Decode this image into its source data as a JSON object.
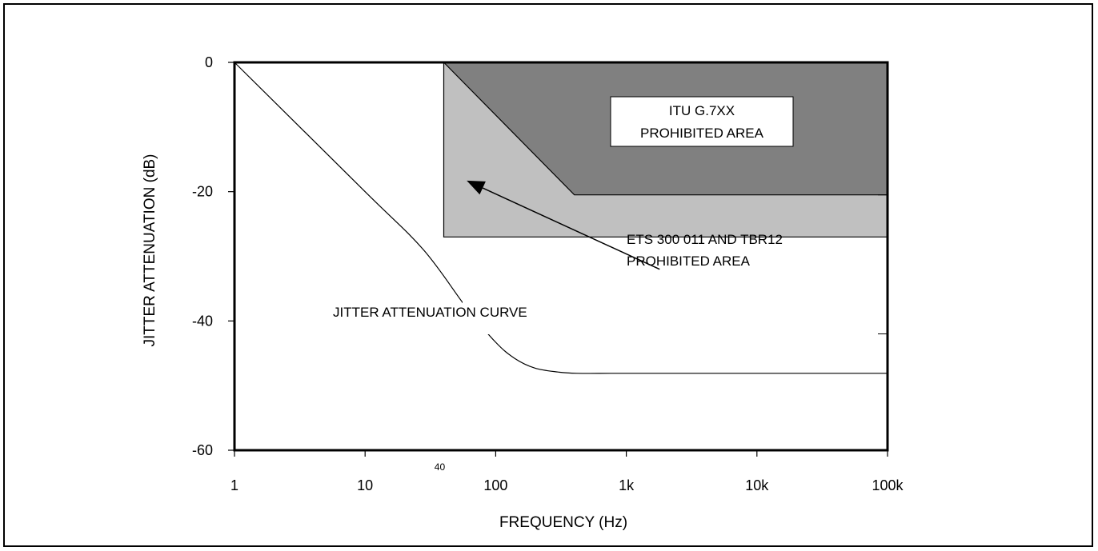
{
  "chart_data": {
    "type": "line",
    "xlabel": "FREQUENCY (Hz)",
    "ylabel": "JITTER ATTENUATION (dB)",
    "x_scale": "log",
    "xlim": [
      1,
      100000
    ],
    "ylim": [
      -60,
      0
    ],
    "x_ticks": [
      {
        "value": 1,
        "label": "1"
      },
      {
        "value": 10,
        "label": "10"
      },
      {
        "value": 100,
        "label": "100"
      },
      {
        "value": 1000,
        "label": "1k"
      },
      {
        "value": 10000,
        "label": "10k"
      },
      {
        "value": 100000,
        "label": "100k"
      }
    ],
    "y_ticks": [
      {
        "value": 0,
        "label": "0"
      },
      {
        "value": -20,
        "label": "-20"
      },
      {
        "value": -40,
        "label": "-40"
      },
      {
        "value": -60,
        "label": "-60"
      }
    ],
    "extra_x_tick": {
      "value": 40,
      "label": "40"
    },
    "right_minor_ticks": [
      -20.5,
      -42
    ],
    "grid": false,
    "curve": {
      "name": "JITTER ATTENUATION CURVE",
      "x": [
        1,
        10,
        28,
        60,
        100,
        140,
        200,
        300,
        420,
        1000,
        10000,
        100000
      ],
      "y": [
        0,
        -20,
        -29,
        -38,
        -43.3,
        -45.8,
        -47.3,
        -47.9,
        -48.1,
        -48.1,
        -48.1,
        -48.1
      ]
    },
    "regions": [
      {
        "name": "ETS 300 011 AND TBR12\nPROHIBITED AREA",
        "label_lines": [
          "ETS 300 011 AND TBR12",
          "PROHIBITED AREA"
        ],
        "color": "#c0c0c0",
        "x": [
          40,
          100000,
          100000,
          40
        ],
        "y": [
          0,
          0,
          -27,
          -27
        ]
      },
      {
        "name": "ITU G.7XX\nPROHIBITED AREA",
        "label_lines": [
          "ITU G.7XX",
          "PROHIBITED AREA"
        ],
        "color": "#808080",
        "x": [
          40,
          100000,
          100000,
          400
        ],
        "y": [
          0,
          0,
          -20.5,
          -20.5
        ]
      }
    ],
    "annotations": {
      "curve_label": "JITTER ATTENUATION CURVE",
      "arrow_from": {
        "x": 1800,
        "y": -32
      },
      "arrow_to": {
        "x": 60,
        "y": -18.3
      }
    }
  }
}
